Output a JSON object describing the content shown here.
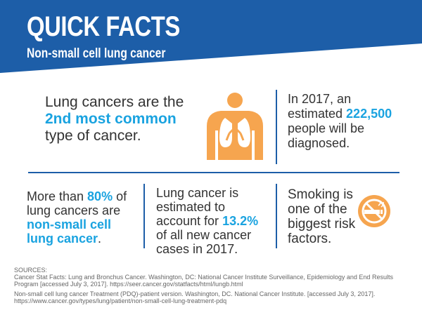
{
  "header": {
    "title": "QUICK FACTS",
    "subtitle": "Non-small cell lung cancer",
    "color": "#1d5ea8"
  },
  "facts": {
    "f1": {
      "pre": "Lung cancers are the ",
      "highlight": "2nd most common",
      "post": " type of cancer."
    },
    "f2": {
      "pre": "In 2017, an estimated ",
      "highlight": "222,500",
      "post": " people will be diagnosed."
    },
    "f3": {
      "pre": "More than ",
      "highlight1": "80%",
      "mid": " of lung cancers are ",
      "highlight2": "non-small cell lung cancer",
      "post": "."
    },
    "f4": {
      "pre": "Lung cancer is estimated to account for ",
      "highlight": "13.2%",
      "post": " of all new cancer cases in 2017."
    },
    "f5": {
      "text": "Smoking is one of the biggest risk factors."
    }
  },
  "icons": {
    "lungs": "lungs-body-icon",
    "no_smoking": "no-smoking-icon",
    "accent_color": "#f6a54f"
  },
  "highlight_color": "#1aa3e0",
  "sources": {
    "label": "SOURCES:",
    "s1": "Cancer Stat Facts: Lung and Bronchus Cancer. Washington, DC: National Cancer Institute Surveillance, Epidemiology and End Results Program [accessed July 3, 2017]. https://seer.cancer.gov/statfacts/html/lungb.html",
    "s2": "Non-small cell lung cancer Treatment (PDQ)-patient version. Washington, DC. National Cancer Institute. [accessed July 3, 2017]. https://www.cancer.gov/types/lung/patient/non-small-cell-lung-treatment-pdq"
  }
}
